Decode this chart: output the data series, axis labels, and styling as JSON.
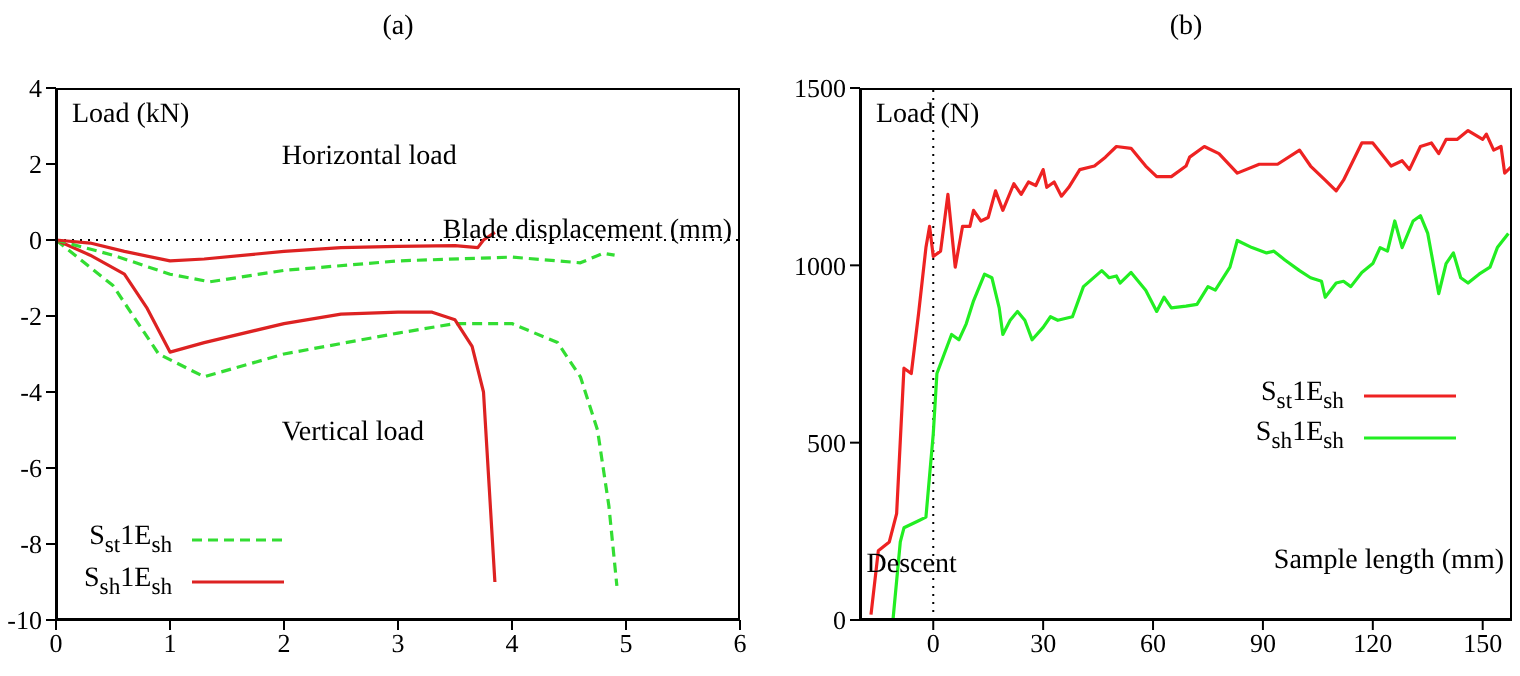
{
  "chart_data": [
    {
      "type": "line",
      "title": "(a)",
      "xlabel": "Blade displacement (mm)",
      "ylabel": "Load (kN)",
      "annotations": [
        "Horizontal load",
        "Vertical load"
      ],
      "xlim": [
        0,
        6
      ],
      "xticks": [
        0,
        1,
        2,
        3,
        4,
        5,
        6
      ],
      "ylim": [
        -10,
        4
      ],
      "yticks": [
        -10,
        -8,
        -6,
        -4,
        -2,
        0,
        2,
        4
      ],
      "legend": "bottom left",
      "marker": "none",
      "ref_lines": [
        {
          "axis": "y",
          "value": 0,
          "color": "#000000",
          "line_style": "dotted"
        }
      ],
      "series": [
        {
          "name": "S$_{st}$1E$_{sh}$",
          "color": "#33dd33",
          "line_style": "dashed",
          "x": [
            0,
            0.5,
            0.9,
            1.3,
            2,
            3,
            3.5,
            4,
            4.4,
            4.6,
            4.75,
            4.85,
            4.92
          ],
          "values": [
            0,
            -1.2,
            -3,
            -3.6,
            -3,
            -2.45,
            -2.2,
            -2.2,
            -2.7,
            -3.6,
            -5,
            -7,
            -9.1
          ]
        },
        {
          "name": "S$_{sh}$1E$_{sh}$",
          "color": "#dd2222",
          "line_style": "solid",
          "x": [
            0,
            0.3,
            0.6,
            0.8,
            1,
            1.3,
            2,
            2.5,
            3,
            3.3,
            3.5,
            3.65,
            3.75,
            3.8,
            3.85
          ],
          "values": [
            0,
            -0.4,
            -0.9,
            -1.8,
            -2.95,
            -2.7,
            -2.2,
            -1.95,
            -1.9,
            -1.9,
            -2.1,
            -2.8,
            -4,
            -6.5,
            -9
          ]
        },
        {
          "color": "#33dd33",
          "line_style": "dashed",
          "x": [
            0,
            0.5,
            1,
            1.35,
            2,
            3,
            4,
            4.6,
            4.8,
            4.9
          ],
          "values": [
            0,
            -0.4,
            -0.9,
            -1.1,
            -0.8,
            -0.55,
            -0.45,
            -0.6,
            -0.35,
            -0.4
          ]
        },
        {
          "color": "#dd2222",
          "line_style": "solid",
          "x": [
            0,
            0.3,
            0.6,
            1,
            1.3,
            2,
            2.5,
            3,
            3.5,
            3.7,
            3.75,
            3.85
          ],
          "values": [
            0,
            -0.08,
            -0.3,
            -0.55,
            -0.5,
            -0.3,
            -0.2,
            -0.17,
            -0.15,
            -0.2,
            0,
            0.2
          ]
        }
      ]
    },
    {
      "type": "line",
      "title": "(b)",
      "xlabel": "Sample length (mm)",
      "ylabel": "Load (N)",
      "annotations": [
        "Descent"
      ],
      "xlim": [
        -20,
        158
      ],
      "xticks": [
        0,
        30,
        60,
        90,
        120,
        150
      ],
      "ylim": [
        0,
        1500
      ],
      "yticks": [
        0,
        500,
        1000,
        1500
      ],
      "legend": "right",
      "marker": "none",
      "ref_lines": [
        {
          "axis": "x",
          "value": 0,
          "color": "#000000",
          "line_style": "dotted"
        }
      ],
      "series": [
        {
          "name": "S$_{st}$1E$_{sh}$",
          "color": "#ee2222",
          "line_style": "solid",
          "x": [
            -17,
            -15,
            -12,
            -10,
            -8,
            -6,
            -4,
            -2,
            -1,
            0,
            2,
            4,
            6,
            8,
            10,
            11,
            13,
            15,
            17,
            19,
            22,
            24,
            26,
            28,
            30,
            31,
            33,
            35,
            37,
            40,
            44,
            47,
            50,
            54,
            58,
            61,
            65,
            69,
            70,
            74,
            78,
            83,
            89,
            94,
            100,
            103,
            107,
            110,
            112,
            117,
            120,
            125,
            128,
            130,
            133,
            136,
            138,
            140,
            143,
            146,
            150,
            151,
            153,
            155,
            156,
            158
          ],
          "values": [
            15,
            195,
            220,
            300,
            710,
            695,
            865,
            1050,
            1110,
            1025,
            1040,
            1200,
            995,
            1110,
            1110,
            1155,
            1125,
            1135,
            1210,
            1155,
            1230,
            1200,
            1235,
            1225,
            1270,
            1220,
            1235,
            1195,
            1220,
            1270,
            1280,
            1305,
            1335,
            1330,
            1280,
            1250,
            1250,
            1280,
            1305,
            1335,
            1315,
            1260,
            1285,
            1285,
            1325,
            1280,
            1240,
            1210,
            1240,
            1345,
            1345,
            1280,
            1295,
            1270,
            1335,
            1345,
            1315,
            1355,
            1355,
            1380,
            1355,
            1370,
            1325,
            1335,
            1260,
            1280
          ]
        },
        {
          "name": "S$_{sh}$1E$_{sh}$",
          "color": "#22ee22",
          "line_style": "solid",
          "x": [
            -11,
            -9,
            -8,
            -4,
            -2,
            0,
            1,
            3,
            5,
            7,
            9,
            11,
            14,
            16,
            18,
            19,
            21,
            23,
            25,
            27,
            30,
            32,
            34,
            38,
            41,
            46,
            48,
            50,
            51,
            54,
            58,
            61,
            63,
            65,
            69,
            72,
            75,
            77,
            81,
            83,
            87,
            91,
            93,
            96,
            100,
            103,
            106,
            107,
            110,
            112,
            114,
            117,
            120,
            122,
            124,
            126,
            128,
            131,
            133,
            135,
            138,
            140,
            142,
            144,
            146,
            149,
            152,
            154,
            157
          ],
          "values": [
            0,
            220,
            260,
            280,
            290,
            525,
            695,
            750,
            805,
            790,
            835,
            900,
            975,
            965,
            880,
            805,
            845,
            870,
            845,
            790,
            825,
            855,
            845,
            855,
            940,
            985,
            965,
            970,
            950,
            980,
            930,
            870,
            910,
            880,
            885,
            890,
            940,
            930,
            995,
            1070,
            1050,
            1035,
            1040,
            1015,
            985,
            965,
            955,
            910,
            950,
            955,
            940,
            980,
            1005,
            1050,
            1040,
            1125,
            1050,
            1125,
            1140,
            1090,
            920,
            1005,
            1035,
            965,
            950,
            975,
            995,
            1050,
            1090
          ]
        }
      ]
    }
  ]
}
